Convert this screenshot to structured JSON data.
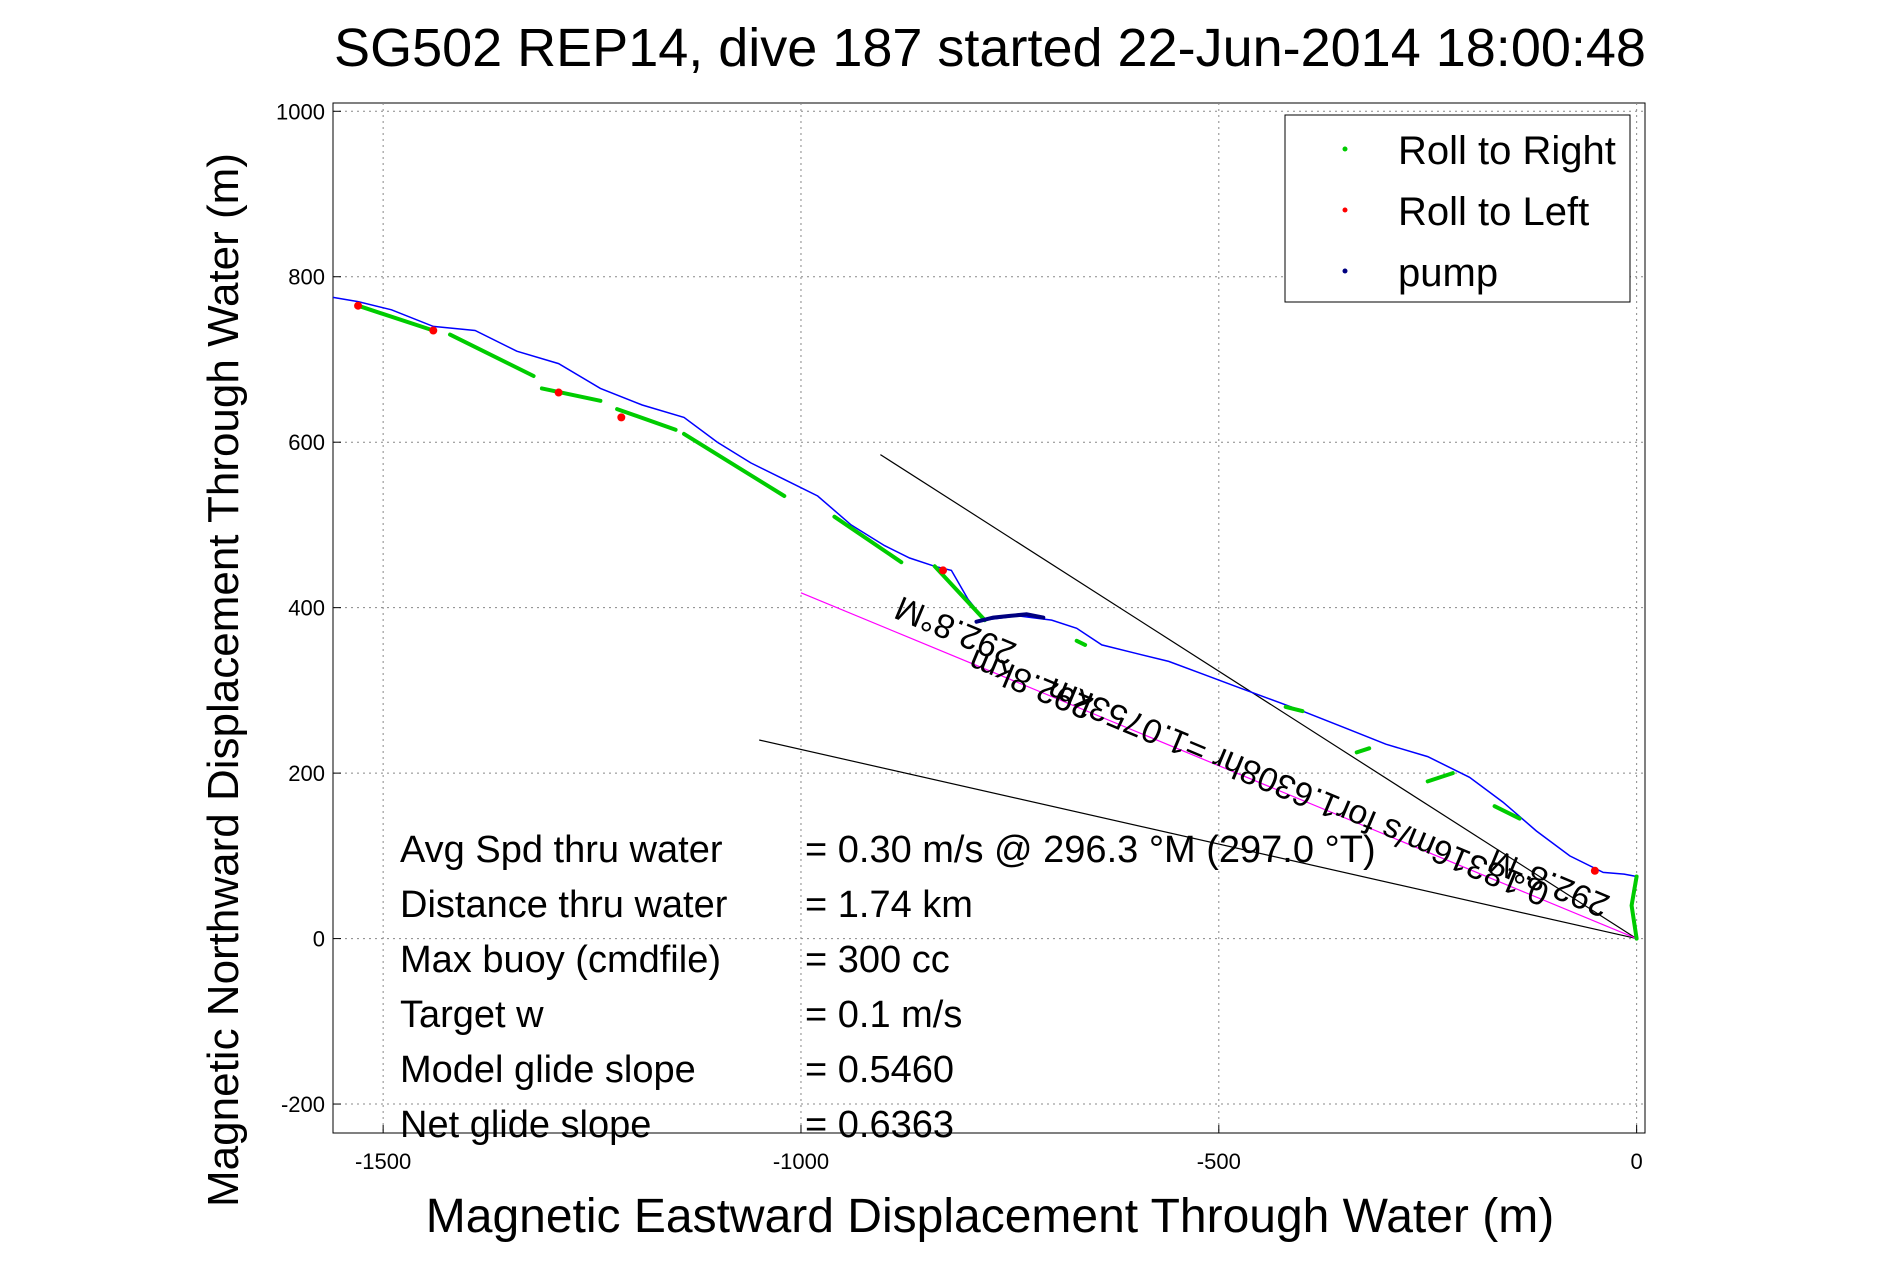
{
  "chart_data": {
    "type": "line",
    "title": "SG502 REP14, dive 187 started 22-Jun-2014 18:00:48",
    "xlabel": "Magnetic Eastward Displacement Through Water (m)",
    "ylabel": "Magnetic Northward Displacement Through Water (m)",
    "xlim": [
      -1560,
      10
    ],
    "ylim": [
      -235,
      1010
    ],
    "xticks": [
      -1500,
      -1000,
      -500,
      0
    ],
    "yticks": [
      -200,
      0,
      200,
      400,
      600,
      800,
      1000
    ],
    "grid": true,
    "legend_position": "top-right",
    "legend": [
      {
        "label": "Roll to Right",
        "color": "#00cc00"
      },
      {
        "label": "Roll to Left",
        "color": "#ff0000"
      },
      {
        "label": "pump",
        "color": "#000080"
      }
    ],
    "track": {
      "color": "#0000ff",
      "x": [
        0,
        -4,
        -6,
        -4,
        0,
        -15,
        -40,
        -80,
        -120,
        -160,
        -200,
        -250,
        -300,
        -350,
        -400,
        -440,
        -480,
        -520,
        -560,
        -600,
        -640,
        -670,
        -700,
        -740,
        -780,
        -800,
        -820,
        -840,
        -870,
        -900,
        -940,
        -980,
        -1020,
        -1060,
        -1100,
        -1140,
        -1190,
        -1240,
        -1290,
        -1340,
        -1390,
        -1440,
        -1490,
        -1530,
        -1560
      ],
      "y": [
        0,
        20,
        40,
        60,
        75,
        78,
        80,
        100,
        130,
        165,
        195,
        220,
        235,
        255,
        275,
        290,
        305,
        320,
        335,
        345,
        355,
        375,
        385,
        390,
        385,
        410,
        445,
        450,
        460,
        475,
        500,
        535,
        555,
        575,
        600,
        630,
        645,
        665,
        695,
        710,
        735,
        740,
        760,
        770,
        775
      ]
    },
    "roll_right_segments": [
      {
        "x": [
          0,
          -6,
          0
        ],
        "y": [
          0,
          40,
          75
        ]
      },
      {
        "x": [
          -140,
          -170
        ],
        "y": [
          145,
          160
        ]
      },
      {
        "x": [
          -220,
          -250
        ],
        "y": [
          200,
          190
        ]
      },
      {
        "x": [
          -320,
          -335
        ],
        "y": [
          230,
          225
        ]
      },
      {
        "x": [
          -400,
          -420
        ],
        "y": [
          275,
          280
        ]
      },
      {
        "x": [
          -660,
          -670
        ],
        "y": [
          355,
          360
        ]
      },
      {
        "x": [
          -780,
          -840
        ],
        "y": [
          385,
          450
        ]
      },
      {
        "x": [
          -880,
          -960
        ],
        "y": [
          455,
          510
        ]
      },
      {
        "x": [
          -1020,
          -1140
        ],
        "y": [
          535,
          610
        ]
      },
      {
        "x": [
          -1150,
          -1220
        ],
        "y": [
          615,
          640
        ]
      },
      {
        "x": [
          -1240,
          -1310
        ],
        "y": [
          650,
          665
        ]
      },
      {
        "x": [
          -1320,
          -1420
        ],
        "y": [
          680,
          730
        ]
      },
      {
        "x": [
          -1440,
          -1530
        ],
        "y": [
          735,
          765
        ]
      }
    ],
    "roll_left_points": [
      {
        "x": -50,
        "y": 82
      },
      {
        "x": -830,
        "y": 445
      },
      {
        "x": -1215,
        "y": 630
      },
      {
        "x": -1290,
        "y": 660
      },
      {
        "x": -1440,
        "y": 735
      },
      {
        "x": -1530,
        "y": 765
      }
    ],
    "pump_segment": {
      "x": [
        -790,
        -770,
        -750,
        -730,
        -710
      ],
      "y": [
        383,
        388,
        390,
        392,
        388
      ]
    },
    "reference_lines": [
      {
        "color": "#000000",
        "x": [
          0,
          -905
        ],
        "y": [
          0,
          585
        ]
      },
      {
        "color": "#000000",
        "x": [
          0,
          -1050
        ],
        "y": [
          0,
          240
        ]
      },
      {
        "color": "#ff00ff",
        "x": [
          0,
          -1000
        ],
        "y": [
          0,
          418
        ]
      }
    ],
    "rotated_annotations": [
      {
        "text": "292.8°M",
        "x": -810,
        "y": 385,
        "angle": 22.7
      },
      {
        "text": "292.8km",
        "x": -720,
        "y": 320,
        "angle": 22.7
      },
      {
        "text": "0.18316m/s for1.6308hr =1.0753km",
        "x": -400,
        "y": 190,
        "angle": 22.7
      },
      {
        "text": "292.8°M",
        "x": -100,
        "y": 80,
        "angle": 22.7
      }
    ],
    "stats": [
      {
        "label": "Avg Spd thru water",
        "value": "=  0.30 m/s @ 296.3  °M (297.0 °T)"
      },
      {
        "label": "Distance thru water",
        "value": "=  1.74 km"
      },
      {
        "label": "Max buoy (cmdfile)",
        "value": "= 300 cc"
      },
      {
        "label": "Target w",
        "value": "= 0.1 m/s"
      },
      {
        "label": "Model glide slope",
        "value": "= 0.5460"
      },
      {
        "label": "Net glide slope",
        "value": "= 0.6363"
      }
    ]
  }
}
